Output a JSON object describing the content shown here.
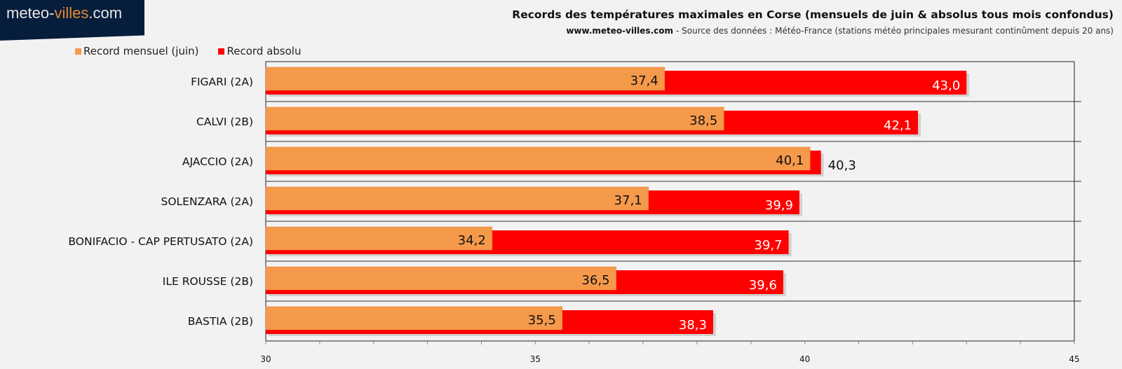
{
  "logo": {
    "part1": "meteo-",
    "part2": "villes",
    "part3": ".com"
  },
  "chart_data": {
    "type": "bar",
    "orientation": "horizontal",
    "title": "Records des températures maximales en Corse (mensuels de juin & absolus tous mois confondus)",
    "subtitle_site": "www.meteo-villes.com",
    "subtitle_rest": " - Source des données : Météo-France (stations météo principales mesurant continûment depuis 20 ans)",
    "categories": [
      "FIGARI (2A)",
      "CALVI (2B)",
      "AJACCIO (2A)",
      "SOLENZARA (2A)",
      "BONIFACIO - CAP PERTUSATO (2A)",
      "ILE ROUSSE (2B)",
      "BASTIA (2B)"
    ],
    "series": [
      {
        "name": "Record mensuel (juin)",
        "color": "#f5994a",
        "values": [
          37.4,
          38.5,
          40.1,
          37.1,
          34.2,
          36.5,
          35.5
        ],
        "labels": [
          "37,4",
          "38,5",
          "40,1",
          "37,1",
          "34,2",
          "36,5",
          "35,5"
        ]
      },
      {
        "name": "Record absolu",
        "color": "#ff0000",
        "values": [
          43.0,
          42.1,
          40.3,
          39.9,
          39.7,
          39.6,
          38.3
        ],
        "labels": [
          "43,0",
          "42,1",
          "40,3",
          "39,9",
          "39,7",
          "39,6",
          "38,3"
        ]
      }
    ],
    "xlim": [
      30,
      45
    ],
    "xticks": [
      "30",
      "35",
      "40",
      "45"
    ],
    "legend": "top-left"
  }
}
